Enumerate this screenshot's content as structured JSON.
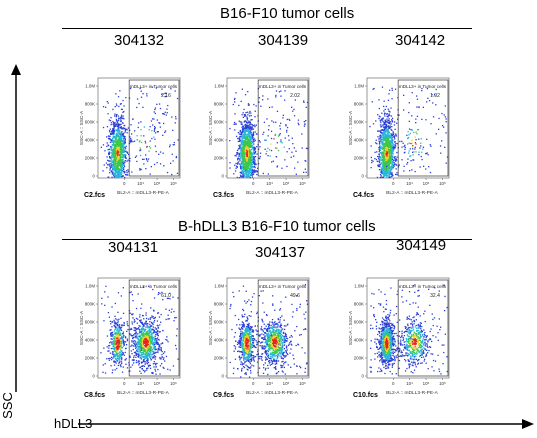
{
  "groups": [
    {
      "title": "B16-F10 tumor cells",
      "samples": [
        {
          "id": "304132",
          "file": "C2.fcs",
          "gate_label": "mDLL3+ in Tumor cells",
          "percent": "2.16",
          "pos_fraction": 0.02,
          "dense": 0.0
        },
        {
          "id": "304139",
          "file": "C3.fcs",
          "gate_label": "mDLL3+ in Tumor cells",
          "percent": "2.02",
          "pos_fraction": 0.02,
          "dense": 0.0
        },
        {
          "id": "304142",
          "file": "C4.fcs",
          "gate_label": "mDLL3+ in Tumor cells",
          "percent": "1.92",
          "pos_fraction": 0.02,
          "dense": 0.0
        }
      ]
    },
    {
      "title": "B-hDLL3 B16-F10 tumor cells",
      "samples": [
        {
          "id": "304131",
          "file": "C8.fcs",
          "gate_label": "mDLL3+ in Tumor cells",
          "percent": "61.0",
          "pos_fraction": 0.61,
          "dense": 1.0
        },
        {
          "id": "304137",
          "file": "C9.fcs",
          "gate_label": "mDLL3+ in Tumor cells",
          "percent": "49.6",
          "pos_fraction": 0.5,
          "dense": 0.9
        },
        {
          "id": "304149",
          "file": "C10.fcs",
          "gate_label": "mDLL3+ in Tumor cells",
          "percent": "32.4",
          "pos_fraction": 0.32,
          "dense": 0.8
        }
      ]
    }
  ],
  "plot_axes": {
    "x_label": "BL2-A :: mDLL3-R-PE-A",
    "y_label": "SSC-A :: SSC-A",
    "y_ticks": [
      "1.0M",
      "800K",
      "600K",
      "400K",
      "200K",
      "0"
    ],
    "x_ticks": [
      "0",
      "10⁴",
      "10⁵",
      "10⁶"
    ]
  },
  "axes": {
    "y": "SSC",
    "x": "hDLL3"
  }
}
